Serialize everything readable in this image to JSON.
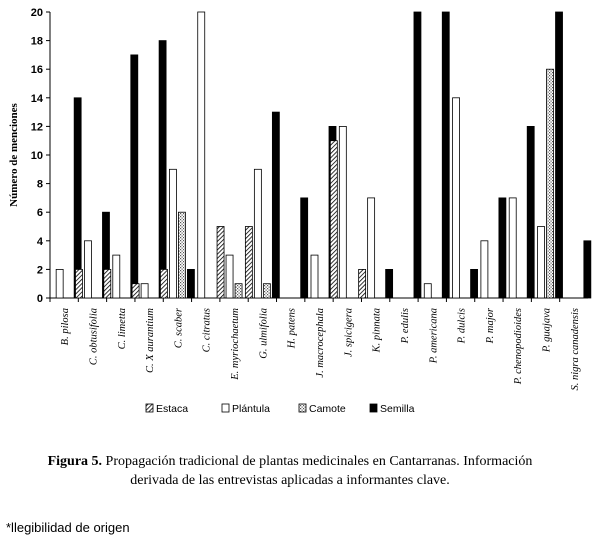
{
  "chart_data": {
    "type": "bar",
    "ylabel": "Número de menciones",
    "ylim": [
      0,
      20
    ],
    "yticks": [
      0,
      2,
      4,
      6,
      8,
      10,
      12,
      14,
      16,
      18,
      20
    ],
    "categories": [
      "B. pilosa",
      "C. obtusifolia",
      "C. limetta",
      "C. X aurantium",
      "C. scaber",
      "C. citratus",
      "E. myriochaetum",
      "G. ulmifolia",
      "H. patens",
      "J. macrocephala",
      "J. spicigera",
      "K. pinnata",
      "P. edulis",
      "P. americana",
      "P. dulcis",
      "P. major",
      "P. chenopodioides",
      "P. guajava",
      "S. nigra canadensis"
    ],
    "series": [
      {
        "name": "Estaca",
        "pattern": "diagonal",
        "values": [
          0,
          2,
          2,
          1,
          2,
          0,
          5,
          5,
          0,
          0,
          11,
          2,
          0,
          0,
          0,
          0,
          0,
          0,
          0
        ]
      },
      {
        "name": "Plántula",
        "pattern": "white",
        "values": [
          2,
          4,
          3,
          1,
          9,
          20,
          3,
          9,
          0,
          3,
          12,
          7,
          0,
          1,
          14,
          4,
          7,
          5,
          0
        ]
      },
      {
        "name": "Camote",
        "pattern": "dotted",
        "values": [
          0,
          0,
          0,
          0,
          6,
          0,
          1,
          1,
          0,
          0,
          0,
          0,
          0,
          0,
          0,
          0,
          0,
          16,
          0
        ]
      },
      {
        "name": "Semilla",
        "pattern": "black",
        "values": [
          14,
          6,
          17,
          18,
          2,
          0,
          0,
          13,
          7,
          12,
          0,
          2,
          20,
          20,
          2,
          7,
          12,
          20,
          4
        ]
      }
    ],
    "legend_position": "bottom",
    "grid": false
  },
  "caption": {
    "label": "Figura 5.",
    "text": "Propagación tradicional de plantas medicinales en Cantarranas. Información derivada de las entrevistas aplicadas a informantes clave."
  },
  "note": "*llegibilidad de origen"
}
